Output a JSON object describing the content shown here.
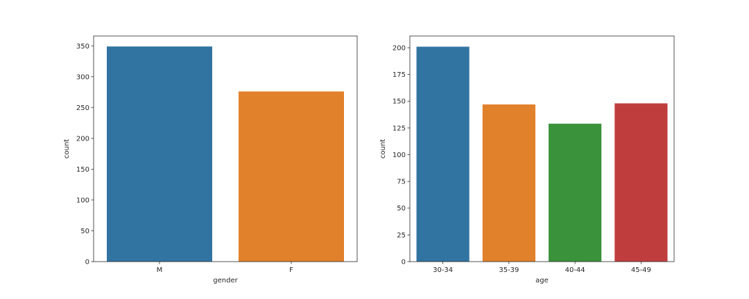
{
  "chart_data": [
    {
      "type": "bar",
      "categories": [
        "M",
        "F"
      ],
      "values": [
        349,
        276
      ],
      "colors": [
        "#3274a1",
        "#e1812c"
      ],
      "xlabel": "gender",
      "ylabel": "count",
      "ylim": [
        0,
        366
      ],
      "yticks": [
        0,
        50,
        100,
        150,
        200,
        250,
        300,
        350
      ],
      "grid": false
    },
    {
      "type": "bar",
      "categories": [
        "30-34",
        "35-39",
        "40-44",
        "45-49"
      ],
      "values": [
        201,
        147,
        129,
        148
      ],
      "colors": [
        "#3274a1",
        "#e1812c",
        "#3a923a",
        "#c03d3e"
      ],
      "xlabel": "age",
      "ylabel": "count",
      "ylim": [
        0,
        211
      ],
      "yticks": [
        0,
        25,
        50,
        75,
        100,
        125,
        150,
        175,
        200
      ],
      "grid": false
    }
  ]
}
